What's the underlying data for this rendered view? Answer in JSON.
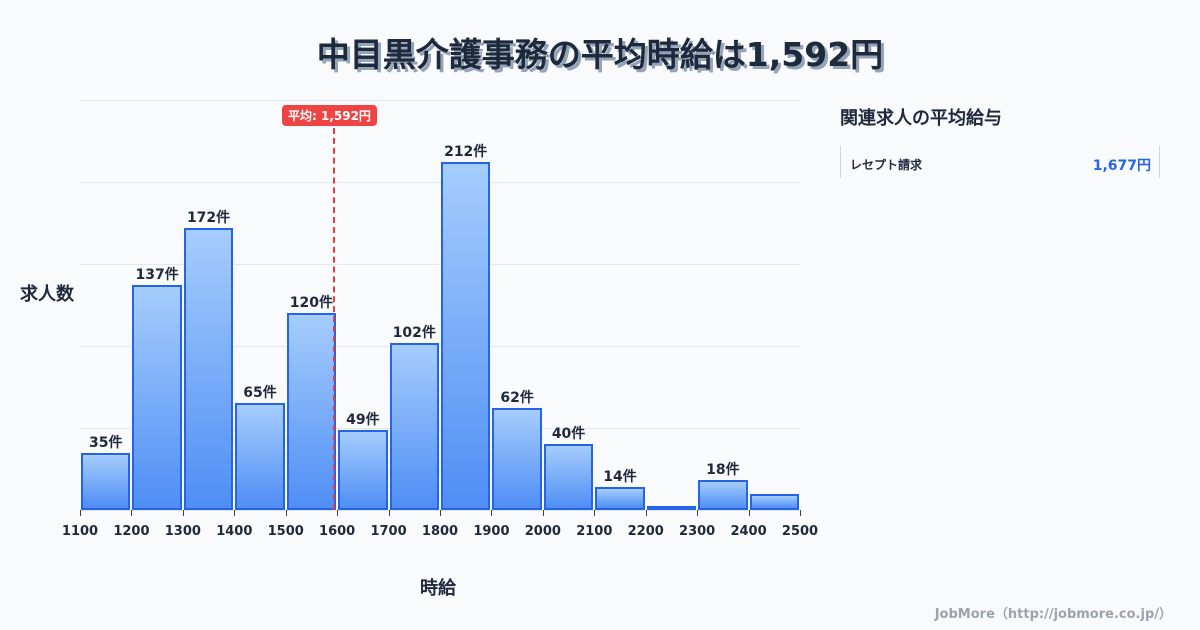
{
  "title": "中目黒介護事務の平均時給は1,592円",
  "axes": {
    "ylabel": "求人数",
    "xlabel": "時給"
  },
  "average": {
    "label": "平均: 1,592円",
    "value": 1592,
    "color": "#ef4444"
  },
  "sidebar": {
    "title": "関連求人の平均給与",
    "items": [
      {
        "name": "レセプト請求",
        "value": "1,677円"
      }
    ]
  },
  "footer": "JobMore（http://jobmore.co.jp/）",
  "chart_data": {
    "type": "bar",
    "title": "中目黒介護事務の平均時給は1,592円",
    "xlabel": "時給",
    "ylabel": "求人数",
    "categories": [
      "1100-1200",
      "1200-1300",
      "1300-1400",
      "1400-1500",
      "1500-1600",
      "1600-1700",
      "1700-1800",
      "1800-1900",
      "1900-2000",
      "2000-2100",
      "2100-2200",
      "2200-2300",
      "2300-2400",
      "2400-2500"
    ],
    "bin_edges": [
      1100,
      1200,
      1300,
      1400,
      1500,
      1600,
      1700,
      1800,
      1900,
      2000,
      2100,
      2200,
      2300,
      2400,
      2500
    ],
    "values": [
      35,
      137,
      172,
      65,
      120,
      49,
      102,
      212,
      62,
      40,
      14,
      1,
      18,
      10
    ],
    "labels": [
      "35件",
      "137件",
      "172件",
      "65件",
      "120件",
      "49件",
      "102件",
      "212件",
      "62件",
      "40件",
      "14件",
      "",
      "18件",
      ""
    ],
    "ylim": [
      0,
      250
    ],
    "grid": true,
    "annotations": [
      {
        "type": "vline",
        "x": 1592,
        "label": "平均: 1,592円"
      }
    ],
    "bar_color": "#2563eb"
  }
}
